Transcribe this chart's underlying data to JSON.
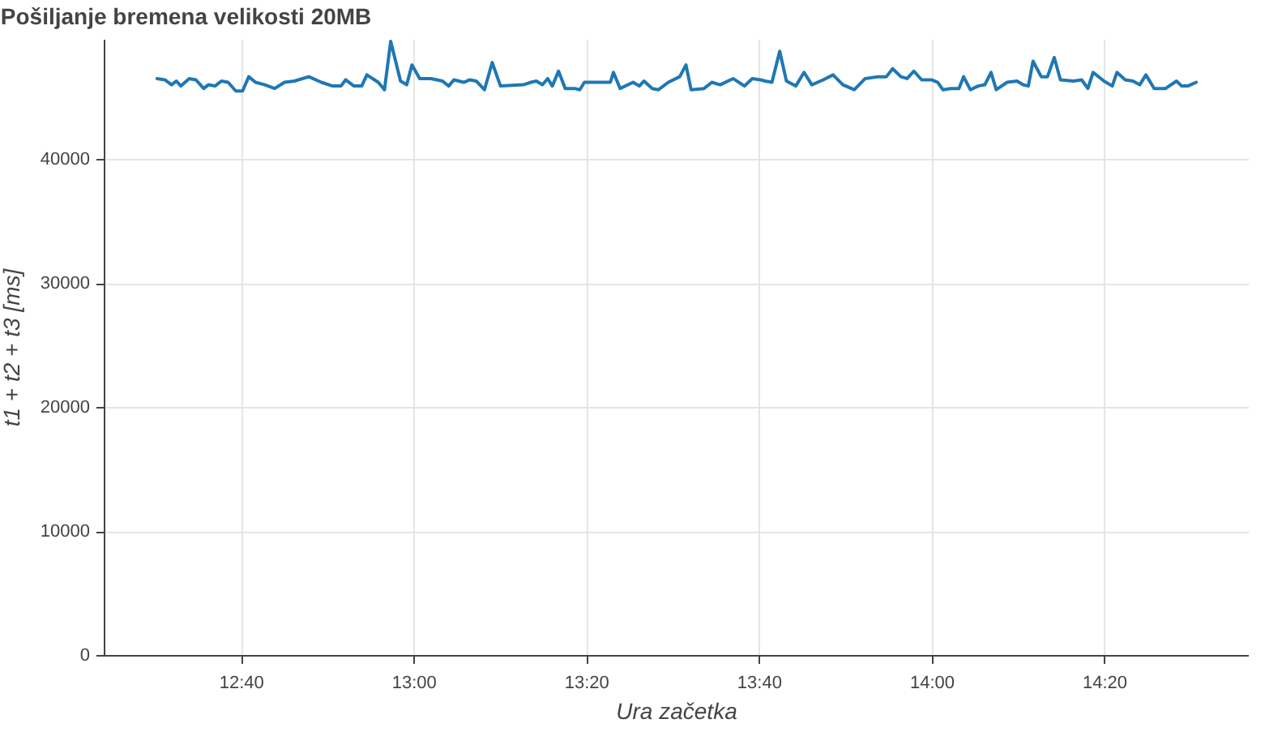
{
  "chart_data": {
    "type": "line",
    "title": "Pošiljanje bremena velikosti 20MB",
    "xlabel": "Ura začetka",
    "ylabel": "t1 + t2 + t3 [ms]",
    "x": [
      12.505,
      12.52,
      12.533,
      12.542,
      12.551,
      12.567,
      12.58,
      12.595,
      12.604,
      12.617,
      12.629,
      12.642,
      12.657,
      12.67,
      12.682,
      12.695,
      12.713,
      12.732,
      12.751,
      12.77,
      12.798,
      12.822,
      12.844,
      12.86,
      12.869,
      12.885,
      12.9,
      12.91,
      12.932,
      12.944,
      12.956,
      12.975,
      12.987,
      12.997,
      13.012,
      13.034,
      13.056,
      13.068,
      13.078,
      13.097,
      13.109,
      13.121,
      13.137,
      13.152,
      13.168,
      13.212,
      13.227,
      13.237,
      13.249,
      13.259,
      13.268,
      13.28,
      13.293,
      13.311,
      13.321,
      13.33,
      13.355,
      13.38,
      13.386,
      13.399,
      13.424,
      13.436,
      13.445,
      13.461,
      13.473,
      13.492,
      13.514,
      13.526,
      13.536,
      13.561,
      13.576,
      13.592,
      13.617,
      13.639,
      13.654,
      13.67,
      13.679,
      13.692,
      13.707,
      13.72,
      13.738,
      13.754,
      13.769,
      13.791,
      13.81,
      13.829,
      13.851,
      13.872,
      13.897,
      13.913,
      13.925,
      13.941,
      13.953,
      13.966,
      13.981,
      14.0,
      14.012,
      14.022,
      14.037,
      14.053,
      14.062,
      14.075,
      14.09,
      14.103,
      14.115,
      14.125,
      14.146,
      14.165,
      14.177,
      14.187,
      14.196,
      14.212,
      14.224,
      14.237,
      14.249,
      14.274,
      14.29,
      14.302,
      14.312,
      14.333,
      14.349,
      14.358,
      14.374,
      14.389,
      14.402,
      14.414,
      14.43,
      14.452,
      14.473,
      14.483,
      14.495,
      14.511
    ],
    "series": [
      {
        "color": "#1f77b4",
        "values": [
          46500,
          46400,
          46000,
          46300,
          45900,
          46500,
          46400,
          45700,
          46000,
          45900,
          46300,
          46200,
          45500,
          45500,
          46650,
          46200,
          46000,
          45700,
          46200,
          46300,
          46650,
          46200,
          45900,
          45900,
          46400,
          45900,
          45900,
          46800,
          46200,
          45600,
          49500,
          46300,
          46000,
          47600,
          46500,
          46500,
          46300,
          45900,
          46400,
          46200,
          46400,
          46300,
          45600,
          47800,
          45900,
          46000,
          46200,
          46300,
          46000,
          46500,
          45900,
          47100,
          45700,
          45700,
          45600,
          46200,
          46200,
          46200,
          47000,
          45700,
          46200,
          45900,
          46300,
          45700,
          45600,
          46200,
          46650,
          47600,
          45600,
          45700,
          46200,
          46000,
          46500,
          45900,
          46500,
          46400,
          46300,
          46200,
          48700,
          46300,
          45900,
          47000,
          46000,
          46400,
          46800,
          46000,
          45600,
          46500,
          46650,
          46650,
          47300,
          46650,
          46500,
          47100,
          46400,
          46400,
          46200,
          45600,
          45700,
          45700,
          46650,
          45600,
          45900,
          46000,
          47000,
          45600,
          46200,
          46300,
          46000,
          45900,
          47900,
          46650,
          46650,
          48200,
          46400,
          46300,
          46400,
          45700,
          47000,
          46300,
          45900,
          47000,
          46400,
          46300,
          46000,
          46800,
          45700,
          45700,
          46300,
          45900,
          45900,
          46200
        ]
      }
    ],
    "xlim": [
      12.402,
      14.611
    ],
    "xticks": [
      {
        "value": 12.6667,
        "label": "12:40"
      },
      {
        "value": 13,
        "label": "13:00"
      },
      {
        "value": 13.3333,
        "label": "13:20"
      },
      {
        "value": 13.6667,
        "label": "13:40"
      },
      {
        "value": 14,
        "label": "14:00"
      },
      {
        "value": 14.3333,
        "label": "14:20"
      }
    ],
    "ylim": [
      0,
      49700
    ],
    "yticks": [
      0,
      10000,
      20000,
      30000,
      40000
    ],
    "grid": true,
    "marker": "none",
    "line_style": "solid"
  }
}
